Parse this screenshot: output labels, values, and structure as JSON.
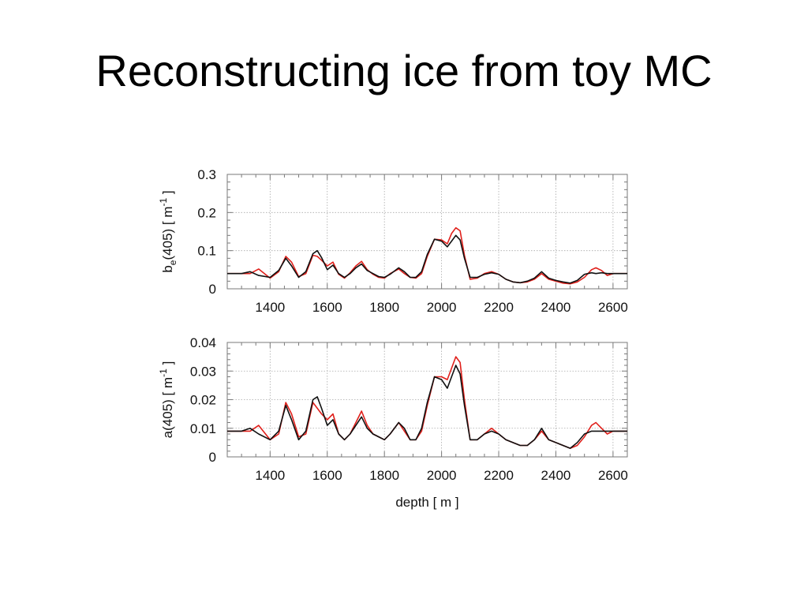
{
  "slide": {
    "title": "Reconstructing ice from toy MC"
  },
  "colors": {
    "series_red": "#e0201b",
    "series_black": "#111111",
    "grid": "#a8a8a8",
    "frame": "#7a7a7a"
  },
  "chart_data": [
    {
      "type": "line",
      "ylabel_main": "b",
      "ylabel_sub": "e",
      "ylabel_rest": "(405) [ m",
      "ylabel_sup": "-1",
      "ylabel_end": " ]",
      "xlabel": "",
      "xlim": [
        1250,
        2650
      ],
      "ylim": [
        0,
        0.3
      ],
      "xticks": [
        1400,
        1600,
        1800,
        2000,
        2200,
        2400,
        2600
      ],
      "yticks": [
        0,
        0.1,
        0.2,
        0.3
      ],
      "ytick_labels": [
        "0",
        "0.1",
        "0.2",
        "0.3"
      ],
      "grid": true,
      "series": [
        {
          "color": "#e0201b",
          "x": [
            1250,
            1300,
            1330,
            1360,
            1400,
            1430,
            1455,
            1475,
            1500,
            1525,
            1550,
            1565,
            1580,
            1600,
            1620,
            1640,
            1660,
            1680,
            1700,
            1720,
            1740,
            1760,
            1780,
            1800,
            1820,
            1850,
            1870,
            1890,
            1910,
            1930,
            1950,
            1975,
            2000,
            2020,
            2035,
            2050,
            2065,
            2080,
            2100,
            2125,
            2150,
            2175,
            2200,
            2225,
            2250,
            2275,
            2300,
            2325,
            2350,
            2375,
            2400,
            2425,
            2450,
            2475,
            2500,
            2525,
            2540,
            2560,
            2580,
            2600,
            2650
          ],
          "y": [
            0.04,
            0.04,
            0.04,
            0.052,
            0.028,
            0.045,
            0.085,
            0.07,
            0.032,
            0.04,
            0.088,
            0.085,
            0.075,
            0.06,
            0.07,
            0.038,
            0.028,
            0.042,
            0.06,
            0.072,
            0.05,
            0.038,
            0.03,
            0.028,
            0.04,
            0.052,
            0.04,
            0.03,
            0.028,
            0.04,
            0.085,
            0.13,
            0.128,
            0.118,
            0.145,
            0.16,
            0.152,
            0.088,
            0.025,
            0.028,
            0.04,
            0.045,
            0.038,
            0.025,
            0.018,
            0.016,
            0.018,
            0.025,
            0.04,
            0.025,
            0.02,
            0.015,
            0.013,
            0.018,
            0.03,
            0.05,
            0.055,
            0.048,
            0.035,
            0.04,
            0.04
          ]
        },
        {
          "color": "#111111",
          "x": [
            1250,
            1300,
            1330,
            1360,
            1400,
            1430,
            1455,
            1475,
            1500,
            1525,
            1550,
            1565,
            1580,
            1600,
            1620,
            1640,
            1660,
            1680,
            1700,
            1720,
            1740,
            1760,
            1780,
            1800,
            1820,
            1850,
            1870,
            1890,
            1910,
            1930,
            1950,
            1975,
            2000,
            2020,
            2035,
            2050,
            2065,
            2080,
            2100,
            2125,
            2150,
            2175,
            2200,
            2225,
            2250,
            2275,
            2300,
            2325,
            2350,
            2375,
            2400,
            2425,
            2450,
            2475,
            2500,
            2525,
            2540,
            2560,
            2580,
            2600,
            2650
          ],
          "y": [
            0.04,
            0.04,
            0.045,
            0.035,
            0.03,
            0.048,
            0.08,
            0.06,
            0.03,
            0.045,
            0.092,
            0.1,
            0.082,
            0.05,
            0.062,
            0.04,
            0.03,
            0.04,
            0.055,
            0.065,
            0.048,
            0.04,
            0.032,
            0.03,
            0.038,
            0.055,
            0.045,
            0.03,
            0.03,
            0.045,
            0.09,
            0.13,
            0.125,
            0.11,
            0.125,
            0.14,
            0.128,
            0.08,
            0.03,
            0.03,
            0.038,
            0.042,
            0.038,
            0.025,
            0.018,
            0.016,
            0.02,
            0.028,
            0.045,
            0.028,
            0.022,
            0.018,
            0.015,
            0.022,
            0.038,
            0.042,
            0.04,
            0.042,
            0.04,
            0.04,
            0.04
          ]
        }
      ]
    },
    {
      "type": "line",
      "ylabel_main": "a(405) [ m",
      "ylabel_sup": "-1",
      "ylabel_end": " ]",
      "xlabel": "depth [ m ]",
      "xlim": [
        1250,
        2650
      ],
      "ylim": [
        0,
        0.04
      ],
      "xticks": [
        1400,
        1600,
        1800,
        2000,
        2200,
        2400,
        2600
      ],
      "yticks": [
        0,
        0.01,
        0.02,
        0.03,
        0.04
      ],
      "ytick_labels": [
        "0",
        "0.01",
        "0.02",
        "0.03",
        "0.04"
      ],
      "grid": true,
      "series": [
        {
          "color": "#e0201b",
          "x": [
            1250,
            1300,
            1330,
            1360,
            1400,
            1430,
            1455,
            1475,
            1500,
            1525,
            1550,
            1565,
            1580,
            1600,
            1620,
            1640,
            1660,
            1680,
            1700,
            1720,
            1740,
            1760,
            1780,
            1800,
            1820,
            1850,
            1870,
            1890,
            1910,
            1930,
            1950,
            1975,
            2000,
            2020,
            2035,
            2050,
            2065,
            2080,
            2100,
            2125,
            2150,
            2175,
            2200,
            2225,
            2250,
            2275,
            2300,
            2325,
            2350,
            2375,
            2400,
            2425,
            2450,
            2475,
            2500,
            2525,
            2540,
            2560,
            2580,
            2600,
            2650
          ],
          "y": [
            0.009,
            0.009,
            0.009,
            0.011,
            0.006,
            0.008,
            0.019,
            0.015,
            0.007,
            0.008,
            0.019,
            0.017,
            0.015,
            0.013,
            0.015,
            0.008,
            0.006,
            0.008,
            0.012,
            0.016,
            0.011,
            0.008,
            0.007,
            0.006,
            0.008,
            0.012,
            0.009,
            0.006,
            0.006,
            0.009,
            0.018,
            0.028,
            0.028,
            0.027,
            0.031,
            0.035,
            0.033,
            0.02,
            0.006,
            0.006,
            0.008,
            0.01,
            0.008,
            0.006,
            0.005,
            0.004,
            0.004,
            0.006,
            0.009,
            0.006,
            0.005,
            0.004,
            0.003,
            0.004,
            0.007,
            0.011,
            0.012,
            0.01,
            0.008,
            0.009,
            0.009
          ]
        },
        {
          "color": "#111111",
          "x": [
            1250,
            1300,
            1330,
            1360,
            1400,
            1430,
            1455,
            1475,
            1500,
            1525,
            1550,
            1565,
            1580,
            1600,
            1620,
            1640,
            1660,
            1680,
            1700,
            1720,
            1740,
            1760,
            1780,
            1800,
            1820,
            1850,
            1870,
            1890,
            1910,
            1930,
            1950,
            1975,
            2000,
            2020,
            2035,
            2050,
            2065,
            2080,
            2100,
            2125,
            2150,
            2175,
            2200,
            2225,
            2250,
            2275,
            2300,
            2325,
            2350,
            2375,
            2400,
            2425,
            2450,
            2475,
            2500,
            2525,
            2540,
            2560,
            2580,
            2600,
            2650
          ],
          "y": [
            0.009,
            0.009,
            0.01,
            0.008,
            0.006,
            0.009,
            0.018,
            0.013,
            0.006,
            0.009,
            0.02,
            0.021,
            0.017,
            0.011,
            0.013,
            0.008,
            0.006,
            0.008,
            0.011,
            0.014,
            0.01,
            0.008,
            0.007,
            0.006,
            0.008,
            0.012,
            0.01,
            0.006,
            0.006,
            0.01,
            0.019,
            0.028,
            0.027,
            0.024,
            0.028,
            0.032,
            0.029,
            0.018,
            0.006,
            0.006,
            0.008,
            0.009,
            0.008,
            0.006,
            0.005,
            0.004,
            0.004,
            0.006,
            0.01,
            0.006,
            0.005,
            0.004,
            0.003,
            0.005,
            0.008,
            0.009,
            0.009,
            0.009,
            0.009,
            0.009,
            0.009
          ]
        }
      ]
    }
  ]
}
